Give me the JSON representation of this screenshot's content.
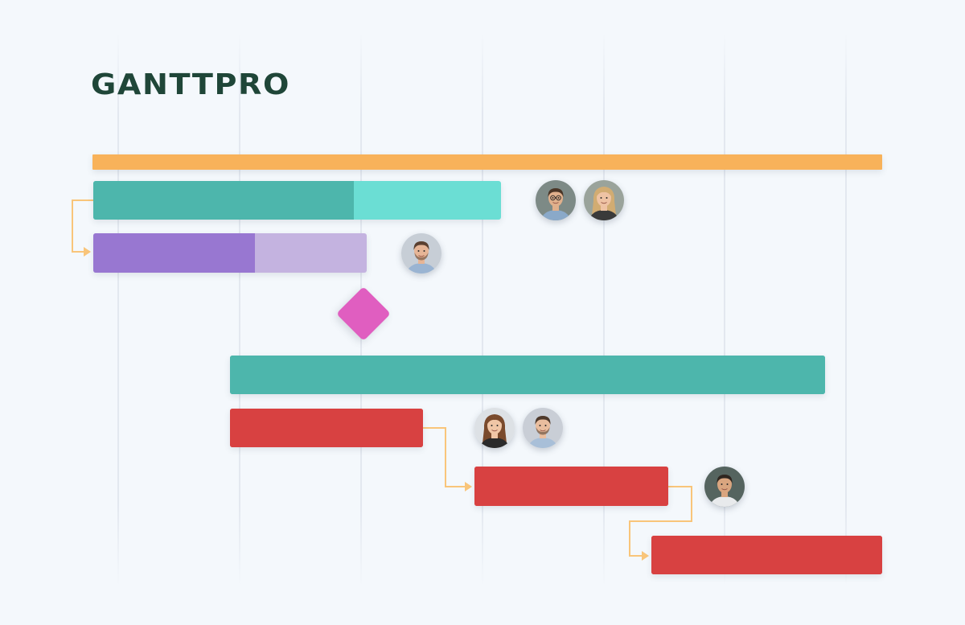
{
  "brand": {
    "name": "GANTTPRO",
    "color": "#1f4638"
  },
  "colors": {
    "background": "#f4f8fc",
    "summary": "#f8b25a",
    "teal_done": "#4db6ac",
    "teal_rest": "#6bded4",
    "purple_done": "#9877d1",
    "purple_rest": "#c4b3e0",
    "milestone": "#e05ec0",
    "red": "#d84141",
    "connector": "#f9c57a"
  },
  "tasks": [
    {
      "id": "summary",
      "kind": "summary",
      "progress": 1.0
    },
    {
      "id": "task-1",
      "kind": "teal",
      "progress": 0.64,
      "assignees": [
        "man-glasses",
        "woman-blonde"
      ]
    },
    {
      "id": "task-2",
      "kind": "purple",
      "progress": 0.59,
      "assignees": [
        "man-beard"
      ]
    },
    {
      "id": "milestone-1",
      "kind": "milestone"
    },
    {
      "id": "task-3",
      "kind": "teal",
      "progress": 1.0
    },
    {
      "id": "task-4",
      "kind": "red",
      "progress": 1.0,
      "assignees": [
        "woman-brown",
        "man-stubble"
      ]
    },
    {
      "id": "task-5",
      "kind": "red",
      "progress": 1.0,
      "assignees": [
        "man-smile"
      ]
    },
    {
      "id": "task-6",
      "kind": "red",
      "progress": 1.0
    }
  ],
  "dependencies": [
    {
      "from": "task-1",
      "to": "task-2"
    },
    {
      "from": "task-4",
      "to": "task-5"
    },
    {
      "from": "task-5",
      "to": "task-6"
    }
  ],
  "avatars": {
    "man-glasses": {
      "bg": "#7d8a86",
      "skin": "#e0b08c",
      "hair": "#4a3526",
      "shirt": "#8aa9c9",
      "glasses": true
    },
    "woman-blonde": {
      "bg": "#9aa39b",
      "skin": "#eec3a4",
      "hair": "#d2ac72",
      "shirt": "#3a3a3a",
      "long": true
    },
    "man-beard": {
      "bg": "#c7ced6",
      "skin": "#e6b596",
      "hair": "#5a4030",
      "shirt": "#9ab4d2",
      "beard": true
    },
    "woman-brown": {
      "bg": "#dde1e5",
      "skin": "#f0c6a6",
      "hair": "#7a4a2c",
      "shirt": "#2b2b2b",
      "long": true
    },
    "man-stubble": {
      "bg": "#c9ced6",
      "skin": "#e9bd9e",
      "hair": "#4f3a2c",
      "shirt": "#a8bfd8",
      "beard": true
    },
    "man-smile": {
      "bg": "#55645f",
      "skin": "#d9a57f",
      "hair": "#2f2620",
      "shirt": "#e8eaec"
    }
  }
}
